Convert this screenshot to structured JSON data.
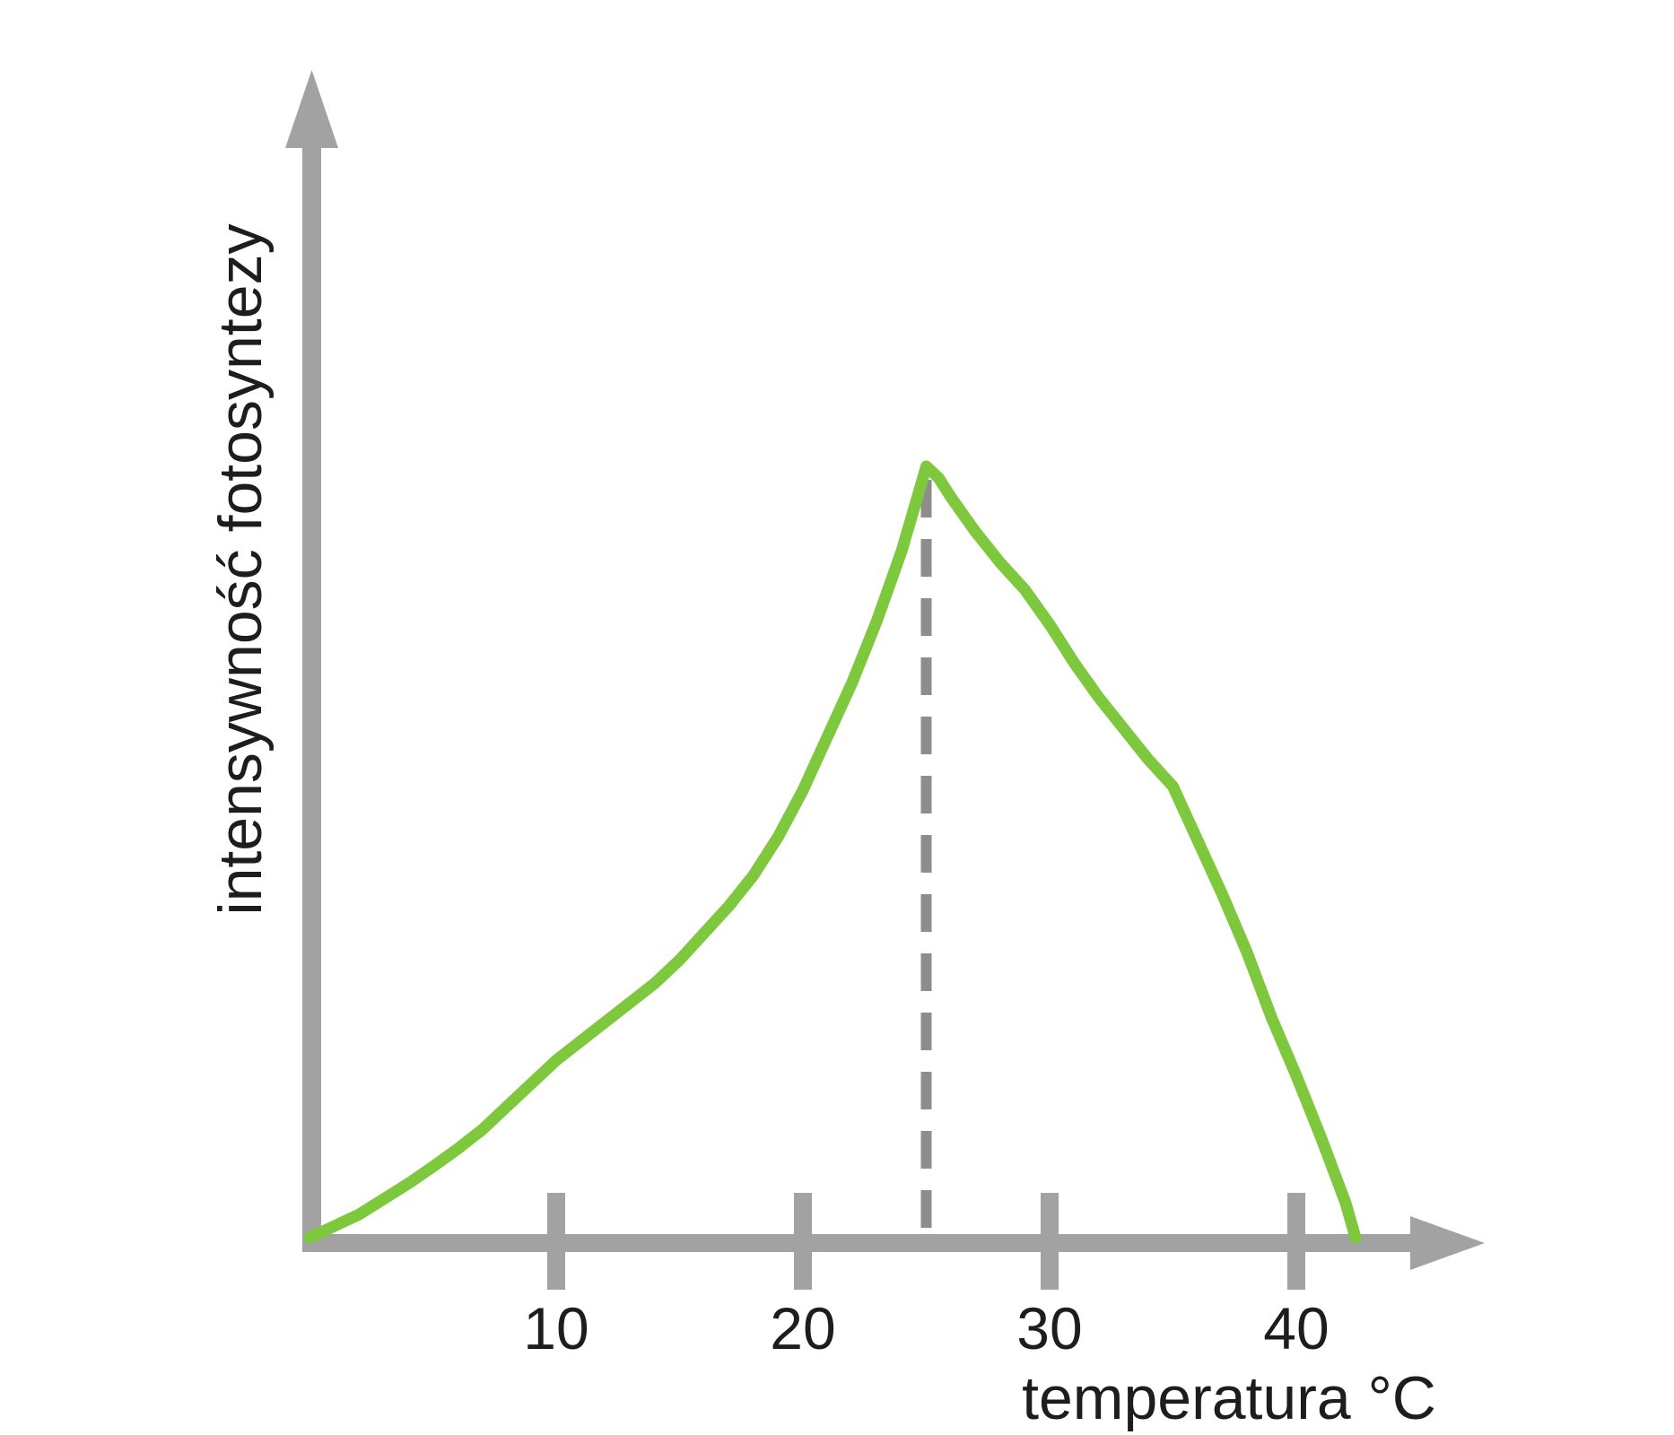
{
  "figure": {
    "background": "#ffffff",
    "colors": {
      "curve": "#7dc83c",
      "axis": "#a2a2a2",
      "dashed_line": "#8d8d8d",
      "text": "#1d1d1d"
    }
  },
  "chart_data": {
    "type": "line",
    "title": "",
    "xlabel": "temperatura °C",
    "ylabel": "intensywność fotosyntezy",
    "x_unit": "°C",
    "xlim": [
      0,
      47
    ],
    "ylim_relative_percent": [
      0,
      100
    ],
    "x_ticks": [
      10,
      20,
      30,
      40
    ],
    "y_ticks": [],
    "grid": false,
    "legend": "none",
    "optimum_temperature_c": 25,
    "curve_start_temperature_c": 0,
    "curve_end_temperature_c": 42.4,
    "annotations": [
      {
        "type": "dashed-vline",
        "x": 25,
        "meaning": "optimum temperature at curve peak"
      }
    ],
    "series": [
      {
        "name": "intensywność fotosyntezy",
        "color": "#7dc83c",
        "points_temp_c_vs_relative_intensity_percent": [
          [
            0,
            0
          ],
          [
            1,
            1.5
          ],
          [
            2,
            3
          ],
          [
            3,
            5
          ],
          [
            4,
            7
          ],
          [
            5,
            9.2
          ],
          [
            6,
            11.5
          ],
          [
            7,
            14
          ],
          [
            8,
            17
          ],
          [
            9,
            20
          ],
          [
            10,
            23
          ],
          [
            11,
            25.5
          ],
          [
            12,
            28
          ],
          [
            13,
            30.5
          ],
          [
            14,
            33
          ],
          [
            15,
            36
          ],
          [
            16,
            39.5
          ],
          [
            17,
            43
          ],
          [
            18,
            47
          ],
          [
            19,
            52
          ],
          [
            20,
            58
          ],
          [
            21,
            65
          ],
          [
            22,
            72
          ],
          [
            23,
            80
          ],
          [
            24,
            89
          ],
          [
            24.5,
            94.5
          ],
          [
            25,
            100
          ],
          [
            25.5,
            98.5
          ],
          [
            26,
            96
          ],
          [
            27,
            91.5
          ],
          [
            28,
            87.5
          ],
          [
            29,
            84
          ],
          [
            30,
            79.5
          ],
          [
            31,
            74.5
          ],
          [
            32,
            70
          ],
          [
            33,
            66
          ],
          [
            34,
            62
          ],
          [
            35,
            58.5
          ],
          [
            36,
            51.5
          ],
          [
            37,
            44.5
          ],
          [
            38,
            37
          ],
          [
            39,
            28.5
          ],
          [
            40,
            21
          ],
          [
            41,
            13
          ],
          [
            42,
            4.5
          ],
          [
            42.4,
            0
          ]
        ]
      }
    ]
  }
}
